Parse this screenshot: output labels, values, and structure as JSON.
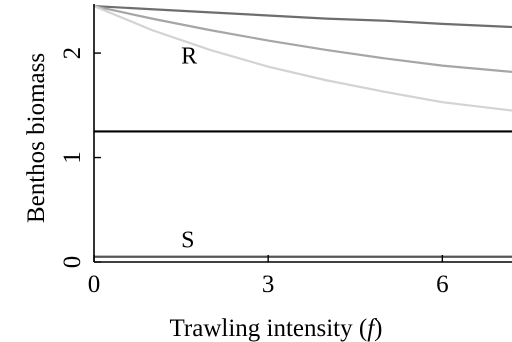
{
  "chart_data": {
    "type": "line",
    "title": "",
    "xlabel_main": "Trawling intensity (",
    "xlabel_var": "f",
    "xlabel_close": ")",
    "ylabel": "Benthos biomass",
    "xlim": [
      0,
      7.2
    ],
    "ylim": [
      0,
      2.47
    ],
    "xticks": [
      0,
      3,
      6
    ],
    "yticks": [
      0,
      1,
      2
    ],
    "xtick_labels": [
      "0",
      "3",
      "6"
    ],
    "ytick_labels": [
      "0",
      "1",
      "2"
    ],
    "grid": false,
    "legend": "none",
    "series": [
      {
        "color": "#6e6e6e",
        "x": [
          0,
          1,
          2,
          3,
          4,
          5,
          6,
          7.2
        ],
        "y": [
          2.45,
          2.42,
          2.39,
          2.36,
          2.33,
          2.31,
          2.28,
          2.25
        ]
      },
      {
        "color": "#a6a6a6",
        "x": [
          0,
          1,
          2,
          3,
          4,
          5,
          6,
          7.2
        ],
        "y": [
          2.45,
          2.33,
          2.22,
          2.12,
          2.03,
          1.95,
          1.88,
          1.82
        ]
      },
      {
        "color": "#d3d3d3",
        "x": [
          0,
          1,
          2,
          3,
          4,
          5,
          6,
          7.2
        ],
        "y": [
          2.45,
          2.22,
          2.03,
          1.87,
          1.74,
          1.63,
          1.53,
          1.45
        ]
      },
      {
        "color": "#000000",
        "x": [
          0,
          7.2
        ],
        "y": [
          1.25,
          1.25
        ]
      },
      {
        "color": "#555555",
        "x": [
          0,
          7.2
        ],
        "y": [
          0.05,
          0.05
        ]
      }
    ],
    "annotations": [
      {
        "text": "R",
        "x": 1.5,
        "y": 1.9
      },
      {
        "text": "S",
        "x": 1.5,
        "y": 0.14
      }
    ]
  }
}
